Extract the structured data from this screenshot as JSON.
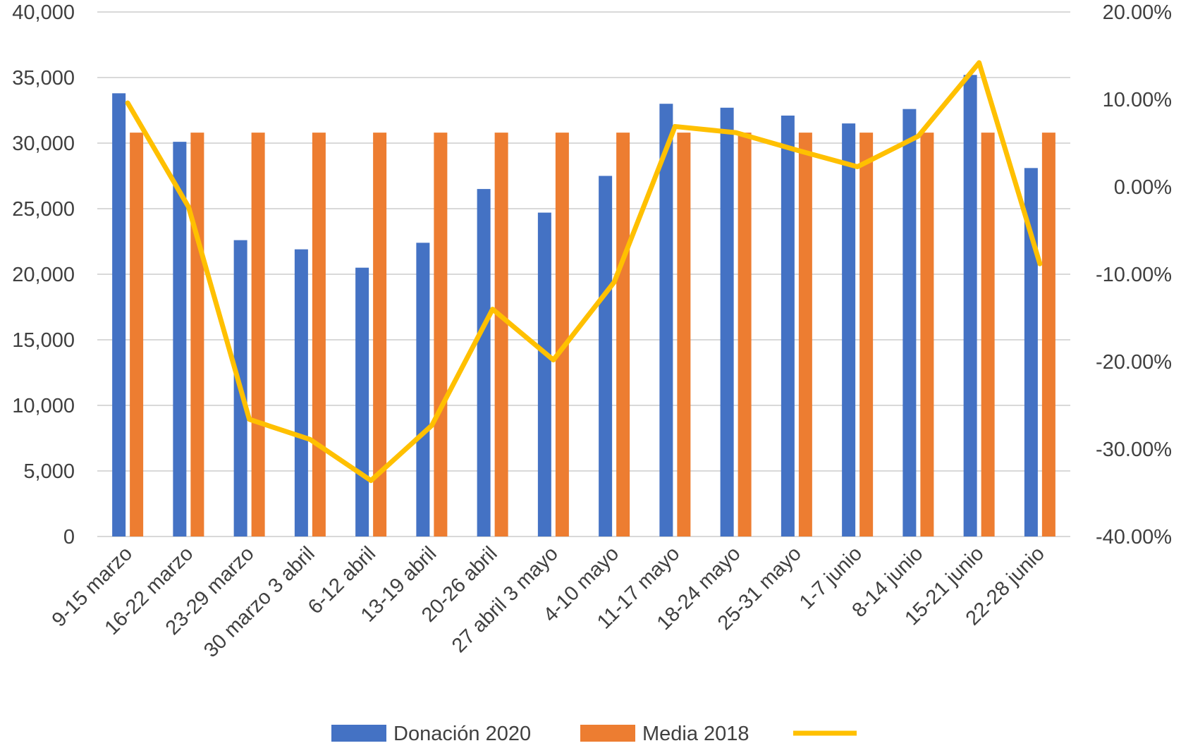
{
  "chart_data": {
    "type": "bar",
    "categories": [
      "9-15 marzo",
      "16-22 marzo",
      "23-29 marzo",
      "30 marzo 3 abril",
      "6-12 abril",
      "13-19 abril",
      "20-26 abril",
      "27 abril 3 mayo",
      "4-10 mayo",
      "11-17 mayo",
      "18-24 mayo",
      "25-31 mayo",
      "1-7 junio",
      "8-14 junio",
      "15-21 junio",
      "22-28 junio"
    ],
    "series": [
      {
        "name": "Donación 2020",
        "kind": "bar",
        "axis": "left",
        "color": "#4472C4",
        "values": [
          33800,
          30100,
          22600,
          21900,
          20500,
          22400,
          26500,
          24700,
          27500,
          33000,
          32700,
          32100,
          31500,
          32600,
          35200,
          28100
        ]
      },
      {
        "name": "Media 2018",
        "kind": "bar",
        "axis": "left",
        "color": "#ED7D31",
        "values": [
          30800,
          30800,
          30800,
          30800,
          30800,
          30800,
          30800,
          30800,
          30800,
          30800,
          30800,
          30800,
          30800,
          30800,
          30800,
          30800
        ]
      },
      {
        "name": "",
        "kind": "line",
        "axis": "right",
        "color": "#FFC000",
        "values": [
          9.6,
          -2.3,
          -26.6,
          -28.9,
          -33.6,
          -27.3,
          -14.0,
          -19.8,
          -10.9,
          6.9,
          6.2,
          4.2,
          2.3,
          5.8,
          14.2,
          -8.8
        ]
      }
    ],
    "y_left": {
      "lim": [
        0,
        40000
      ],
      "ticks": [
        0,
        5000,
        10000,
        15000,
        20000,
        25000,
        30000,
        35000,
        40000
      ],
      "tick_labels": [
        "0",
        "5,000",
        "10,000",
        "15,000",
        "20,000",
        "25,000",
        "30,000",
        "35,000",
        "40,000"
      ]
    },
    "y_right": {
      "lim": [
        -40,
        20
      ],
      "ticks": [
        -40,
        -30,
        -20,
        -10,
        0,
        10,
        20
      ],
      "tick_labels": [
        "-40.00%",
        "-30.00%",
        "-20.00%",
        "-10.00%",
        "0.00%",
        "10.00%",
        "20.00%"
      ]
    },
    "grid": true,
    "legend": {
      "position": "bottom",
      "items": [
        "Donación 2020",
        "Media 2018",
        ""
      ]
    }
  }
}
